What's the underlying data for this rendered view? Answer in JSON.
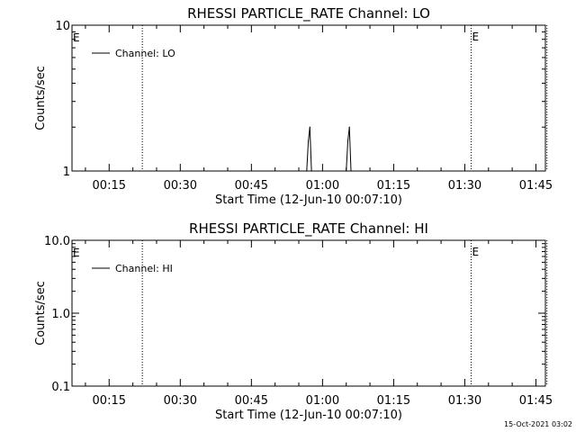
{
  "chart_data": [
    {
      "type": "line",
      "title": "RHESSI PARTICLE_RATE Channel: LO",
      "xlabel": "Start Time (12-Jun-10 00:07:10)",
      "ylabel": "Counts/sec",
      "y_scale": "log",
      "ylim": [
        1,
        10
      ],
      "y_ticks": [
        {
          "value": 1,
          "label": "1"
        },
        {
          "value": 10,
          "label": "10"
        }
      ],
      "xlim": [
        "00:07:10",
        "01:47:00"
      ],
      "x_ticks": [
        "00:15",
        "00:30",
        "00:45",
        "01:00",
        "01:15",
        "01:30",
        "01:45"
      ],
      "legend": {
        "position": "top-left",
        "entries": [
          "Channel: LO"
        ]
      },
      "series": [
        {
          "name": "Channel: LO",
          "points": [
            {
              "x": "00:56:40",
              "y": 1
            },
            {
              "x": "00:57:00",
              "y": 1.6
            },
            {
              "x": "00:57:20",
              "y": 2
            },
            {
              "x": "00:57:40",
              "y": 1
            },
            {
              "x": "01:05:00",
              "y": 1
            },
            {
              "x": "01:05:20",
              "y": 1.6
            },
            {
              "x": "01:05:40",
              "y": 2
            },
            {
              "x": "01:06:00",
              "y": 1
            }
          ]
        }
      ],
      "vertical_markers": [
        {
          "x": "00:22:00",
          "style": "dotted",
          "label": ""
        },
        {
          "x": "01:31:20",
          "style": "dotted",
          "label": "E"
        },
        {
          "x": "01:47:20",
          "style": "dotted",
          "label": ""
        }
      ],
      "edge_flag": "E"
    },
    {
      "type": "line",
      "title": "RHESSI PARTICLE_RATE Channel: HI",
      "xlabel": "Start Time (12-Jun-10 00:07:10)",
      "ylabel": "Counts/sec",
      "y_scale": "log",
      "ylim": [
        0.1,
        10
      ],
      "y_ticks": [
        {
          "value": 0.1,
          "label": "0.1"
        },
        {
          "value": 1,
          "label": "1.0"
        },
        {
          "value": 10,
          "label": "10.0"
        }
      ],
      "xlim": [
        "00:07:10",
        "01:47:00"
      ],
      "x_ticks": [
        "00:15",
        "00:30",
        "00:45",
        "01:00",
        "01:15",
        "01:30",
        "01:45"
      ],
      "legend": {
        "position": "top-left",
        "entries": [
          "Channel: HI"
        ]
      },
      "series": [
        {
          "name": "Channel: HI",
          "points": []
        }
      ],
      "vertical_markers": [
        {
          "x": "00:22:00",
          "style": "dotted",
          "label": ""
        },
        {
          "x": "01:31:20",
          "style": "dotted",
          "label": "E"
        },
        {
          "x": "01:47:20",
          "style": "dotted",
          "label": ""
        }
      ],
      "edge_flag": "E"
    }
  ],
  "timestamp": "15-Oct-2021 03:02"
}
